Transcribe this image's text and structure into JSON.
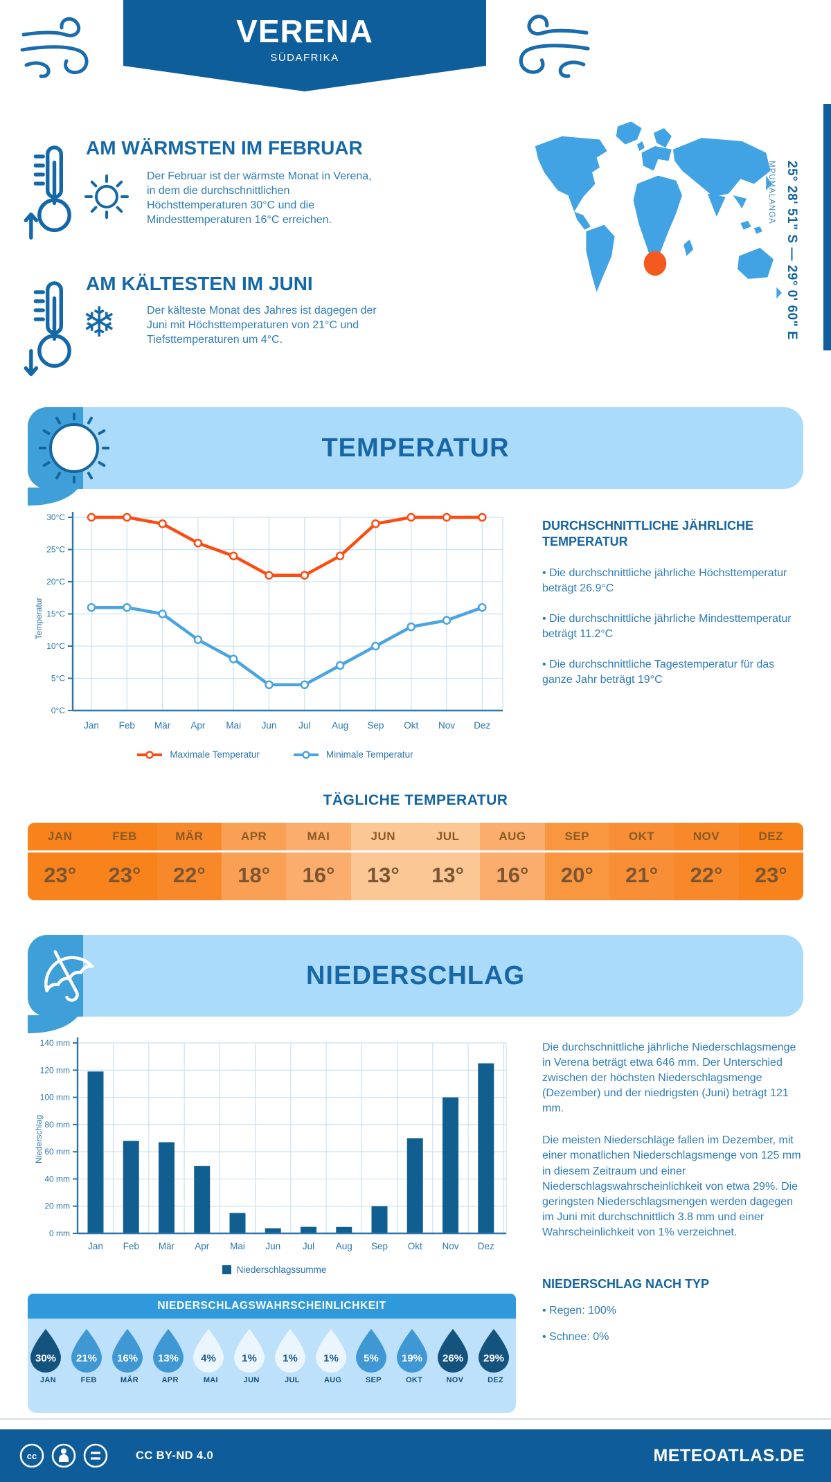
{
  "header": {
    "title": "VERENA",
    "subtitle": "SÜDAFRIKA"
  },
  "location": {
    "coordinates": "25° 28' 51\" S — 29° 0' 60\" E",
    "region": "MPUMALANGA"
  },
  "highlights": {
    "warm": {
      "heading": "AM WÄRMSTEN IM FEBRUAR",
      "text": "Der Februar ist der wärmste Monat in Verena, in dem die durchschnittlichen Höchsttemperaturen 30°C und die Mindesttemperaturen 16°C erreichen."
    },
    "cold": {
      "heading": "AM KÄLTESTEN IM JUNI",
      "text": "Der kälteste Monat des Jahres ist dagegen der Juni mit Höchsttemperaturen von 21°C und Tiefsttemperaturen um 4°C."
    }
  },
  "temperature": {
    "section_title": "TEMPERATUR",
    "annual_heading": "DURCHSCHNITTLICHE JÄHRLICHE TEMPERATUR",
    "annual_bullets": [
      "Die durchschnittliche jährliche Höchsttemperatur beträgt 26.9°C",
      "Die durchschnittliche jährliche Mindesttemperatur beträgt 11.2°C",
      "Die durchschnittliche Tagestemperatur für das ganze Jahr beträgt 19°C"
    ],
    "daily_title": "TÄGLICHE TEMPERATUR",
    "daily": {
      "months": [
        "JAN",
        "FEB",
        "MÄR",
        "APR",
        "MAI",
        "JUN",
        "JUL",
        "AUG",
        "SEP",
        "OKT",
        "NOV",
        "DEZ"
      ],
      "values": [
        "23°",
        "23°",
        "22°",
        "18°",
        "16°",
        "13°",
        "13°",
        "16°",
        "20°",
        "21°",
        "22°",
        "23°"
      ],
      "colors": [
        "#F8821C",
        "#F8821C",
        "#F8892B",
        "#F9A055",
        "#FAAD6C",
        "#FBC795",
        "#FBC795",
        "#FAAD6C",
        "#F99741",
        "#F88F36",
        "#F8892B",
        "#F8821C"
      ]
    }
  },
  "precipitation": {
    "section_title": "NIEDERSCHLAG",
    "text_1": "Die durchschnittliche jährliche Niederschlagsmenge in Verena beträgt etwa 646 mm. Der Unterschied zwischen der höchsten Niederschlagsmenge (Dezember) und der niedrigsten (Juni) beträgt 121 mm.",
    "text_2": "Die meisten Niederschläge fallen im Dezember, mit einer monatlichen Niederschlagsmenge von 125 mm in diesem Zeitraum und einer Niederschlagswahrscheinlichkeit von etwa 29%. Die geringsten Niederschlagsmengen werden dagegen im Juni mit durchschnittlich 3.8 mm und einer Wahrscheinlichkeit von 1% verzeichnet.",
    "type_heading": "NIEDERSCHLAG NACH TYP",
    "type_bullets": [
      "Regen: 100%",
      "Schnee: 0%"
    ],
    "probability": {
      "title": "NIEDERSCHLAGSWAHRSCHEINLICHKEIT",
      "months": [
        "JAN",
        "FEB",
        "MÄR",
        "APR",
        "MAI",
        "JUN",
        "JUL",
        "AUG",
        "SEP",
        "OKT",
        "NOV",
        "DEZ"
      ],
      "values": [
        "30%",
        "21%",
        "16%",
        "13%",
        "4%",
        "1%",
        "1%",
        "1%",
        "5%",
        "19%",
        "26%",
        "29%"
      ],
      "tones": [
        "dark",
        "mid",
        "mid",
        "mid",
        "light",
        "light",
        "light",
        "light",
        "mid",
        "mid",
        "dark",
        "dark"
      ]
    }
  },
  "footer": {
    "license": "CC BY-ND 4.0",
    "site": "METEOATLAS.DE"
  },
  "colors": {
    "brand_dark": "#0F5E9C",
    "banner_light": "#ABDBFA",
    "banner_accent": "#3E9FD9",
    "heading_blue": "#1568A8",
    "body_blue": "#2E7CB8",
    "axis_blue": "#2B74AC",
    "grid_blue": "#CBE0F2",
    "max_line": "#FB4D12",
    "min_line": "#4BA3E0",
    "bar_fill": "#115E90",
    "map_fill": "#41A3E3",
    "marker_orange": "#F4591F",
    "drop_dark": "#15537F",
    "drop_mid": "#3F97D3",
    "drop_light": "#EBF5FD",
    "drop_text_light": "#1B5A8C"
  },
  "chart_data": [
    {
      "type": "line",
      "title": "TEMPERATUR",
      "categories": [
        "Jan",
        "Feb",
        "Mär",
        "Apr",
        "Mai",
        "Jun",
        "Jul",
        "Aug",
        "Sep",
        "Okt",
        "Nov",
        "Dez"
      ],
      "series": [
        {
          "name": "Maximale Temperatur",
          "color": "#FB4D12",
          "values": [
            30,
            30,
            29,
            26,
            24,
            21,
            21,
            24,
            29,
            30,
            30,
            30
          ]
        },
        {
          "name": "Minimale Temperatur",
          "color": "#4BA3E0",
          "values": [
            16,
            16,
            15,
            11,
            8,
            4,
            4,
            7,
            10,
            13,
            14,
            16
          ]
        }
      ],
      "xlabel": "",
      "ylabel": "Temperatur",
      "ylim": [
        0,
        30
      ],
      "ytick_step": 5,
      "ytick_suffix": "°C",
      "grid": true,
      "legend_position": "bottom"
    },
    {
      "type": "bar",
      "title": "NIEDERSCHLAG",
      "categories": [
        "Jan",
        "Feb",
        "Mär",
        "Apr",
        "Mai",
        "Jun",
        "Jul",
        "Aug",
        "Sep",
        "Okt",
        "Nov",
        "Dez"
      ],
      "series": [
        {
          "name": "Niederschlagssumme",
          "color": "#115E90",
          "values": [
            119,
            68,
            67,
            49.5,
            15,
            3.8,
            4.8,
            4.7,
            20,
            70,
            100,
            125
          ]
        }
      ],
      "xlabel": "",
      "ylabel": "Niederschlag",
      "ylim": [
        0,
        140
      ],
      "ytick_step": 20,
      "ytick_suffix": " mm",
      "grid": true,
      "legend_position": "bottom"
    }
  ]
}
